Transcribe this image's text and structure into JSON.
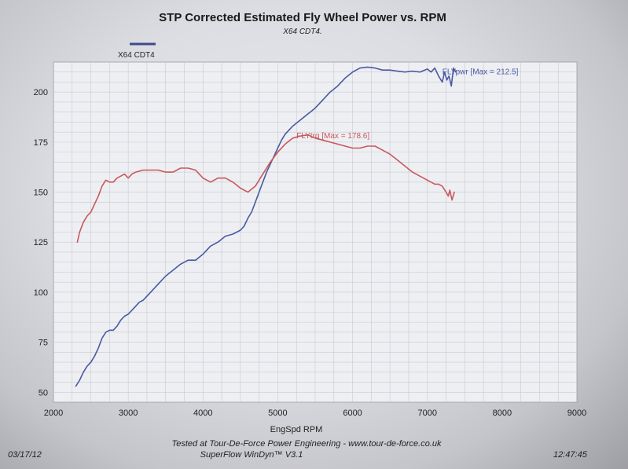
{
  "chart_data": {
    "type": "line",
    "title": "STP Corrected Estimated Fly Wheel Power vs. RPM",
    "subtitle": "X64 CDT4.",
    "legend": [
      {
        "label": "X64 CDT4",
        "color": "#3d4a8a"
      }
    ],
    "xlabel": "EngSpd RPM",
    "ylabel": "",
    "xlim": [
      2000,
      9000
    ],
    "ylim": [
      45,
      215
    ],
    "xticks": [
      2000,
      3000,
      4000,
      5000,
      6000,
      7000,
      8000,
      9000
    ],
    "yticks": [
      50,
      75,
      100,
      125,
      150,
      175,
      200
    ],
    "grid": true,
    "series": [
      {
        "name": "FLYpwr",
        "color": "#4a5aa0",
        "label": "FLYpwr [Max = 212.5]",
        "label_at": [
          7200,
          209
        ],
        "x": [
          2300,
          2350,
          2400,
          2450,
          2500,
          2550,
          2600,
          2650,
          2700,
          2750,
          2800,
          2850,
          2900,
          2950,
          3000,
          3050,
          3100,
          3150,
          3200,
          3300,
          3400,
          3500,
          3600,
          3700,
          3800,
          3900,
          4000,
          4050,
          4100,
          4200,
          4300,
          4400,
          4500,
          4550,
          4600,
          4650,
          4700,
          4750,
          4800,
          4850,
          4900,
          4950,
          5000,
          5050,
          5100,
          5150,
          5200,
          5300,
          5400,
          5500,
          5600,
          5700,
          5800,
          5900,
          6000,
          6100,
          6200,
          6300,
          6400,
          6500,
          6600,
          6700,
          6800,
          6900,
          7000,
          7050,
          7100,
          7150,
          7200,
          7230,
          7260,
          7290,
          7320,
          7350,
          7380
        ],
        "values": [
          53,
          56,
          60,
          63,
          65,
          68,
          72,
          77,
          80,
          81,
          81,
          83,
          86,
          88,
          89,
          91,
          93,
          95,
          96,
          100,
          104,
          108,
          111,
          114,
          116,
          116,
          119,
          121,
          123,
          125,
          128,
          129,
          131,
          133,
          137,
          140,
          145,
          150,
          155,
          160,
          164,
          168,
          172,
          176,
          179,
          181,
          183,
          186,
          189,
          192,
          196,
          200,
          203,
          207,
          210,
          212,
          212.5,
          212,
          211,
          211,
          210.5,
          210,
          210.5,
          210,
          211.5,
          210,
          212,
          208,
          205,
          210,
          206,
          208,
          203,
          212,
          210
        ]
      },
      {
        "name": "FLYtrq",
        "color": "#c8585c",
        "label": "FLYtrq [Max = 178.6]",
        "label_at": [
          5250,
          177
        ],
        "x": [
          2320,
          2350,
          2400,
          2450,
          2500,
          2550,
          2600,
          2650,
          2700,
          2750,
          2800,
          2850,
          2900,
          2950,
          3000,
          3050,
          3100,
          3200,
          3300,
          3400,
          3500,
          3600,
          3700,
          3800,
          3900,
          4000,
          4100,
          4200,
          4300,
          4400,
          4500,
          4600,
          4700,
          4800,
          4900,
          5000,
          5100,
          5200,
          5300,
          5400,
          5500,
          5600,
          5700,
          5800,
          5900,
          6000,
          6100,
          6200,
          6300,
          6400,
          6500,
          6600,
          6700,
          6800,
          6900,
          7000,
          7100,
          7150,
          7200,
          7250,
          7280,
          7300,
          7330,
          7360
        ],
        "values": [
          125,
          130,
          135,
          138,
          140,
          144,
          148,
          153,
          156,
          155,
          155,
          157,
          158,
          159,
          157,
          159,
          160,
          161,
          161,
          161,
          160,
          160,
          162,
          162,
          161,
          157,
          155,
          157,
          157,
          155,
          152,
          150,
          153,
          159,
          165,
          170,
          174,
          177,
          178,
          178.6,
          177,
          176,
          175,
          174,
          173,
          172,
          172,
          173,
          173,
          171,
          169,
          166,
          163,
          160,
          158,
          156,
          154,
          154,
          153,
          150,
          148,
          151,
          146,
          150
        ]
      }
    ]
  },
  "footer": {
    "line1": "Tested at Tour-De-Force Power Engineering - www.tour-de-force.co.uk",
    "line2": "SuperFlow WinDyn™ V3.1",
    "date": "03/17/12",
    "time": "12:47:45"
  }
}
